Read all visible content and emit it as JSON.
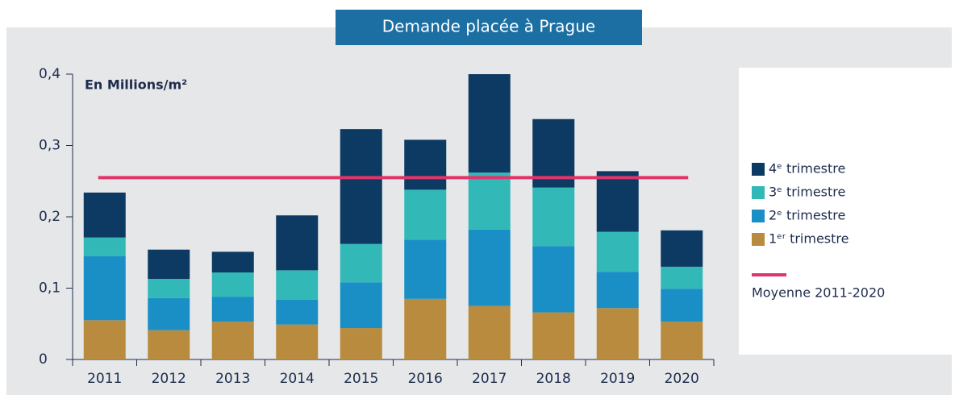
{
  "chart_data": {
    "type": "bar",
    "stacked": true,
    "title": "Demande placée à Prague",
    "unit_label": "En Millions/m²",
    "categories": [
      "2011",
      "2012",
      "2013",
      "2014",
      "2015",
      "2016",
      "2017",
      "2018",
      "2019",
      "2020"
    ],
    "series": [
      {
        "name": "1ᵉʳ trimestre",
        "color": "#b98b3f",
        "values": [
          0.055,
          0.041,
          0.053,
          0.049,
          0.044,
          0.085,
          0.075,
          0.066,
          0.072,
          0.053
        ]
      },
      {
        "name": "2ᵉ trimestre",
        "color": "#1a8fc6",
        "values": [
          0.09,
          0.045,
          0.035,
          0.035,
          0.064,
          0.083,
          0.107,
          0.093,
          0.051,
          0.046
        ]
      },
      {
        "name": "3ᵉ trimestre",
        "color": "#33b8b8",
        "values": [
          0.026,
          0.027,
          0.034,
          0.041,
          0.054,
          0.07,
          0.08,
          0.082,
          0.056,
          0.031
        ]
      },
      {
        "name": "4ᵉ trimestre",
        "color": "#0d3a63",
        "values": [
          0.063,
          0.041,
          0.029,
          0.077,
          0.161,
          0.07,
          0.138,
          0.096,
          0.085,
          0.051
        ]
      }
    ],
    "average": {
      "name": "Moyenne 2011-2020",
      "value": 0.255,
      "color": "#e0356a"
    },
    "ylim": [
      0,
      0.4
    ],
    "yticks": [
      0,
      {
        "value": 0.1,
        "label": "0,1"
      },
      {
        "value": 0.2,
        "label": "0,2"
      },
      {
        "value": 0.3,
        "label": "0,3"
      },
      {
        "value": 0.4,
        "label": "0,4"
      }
    ]
  }
}
